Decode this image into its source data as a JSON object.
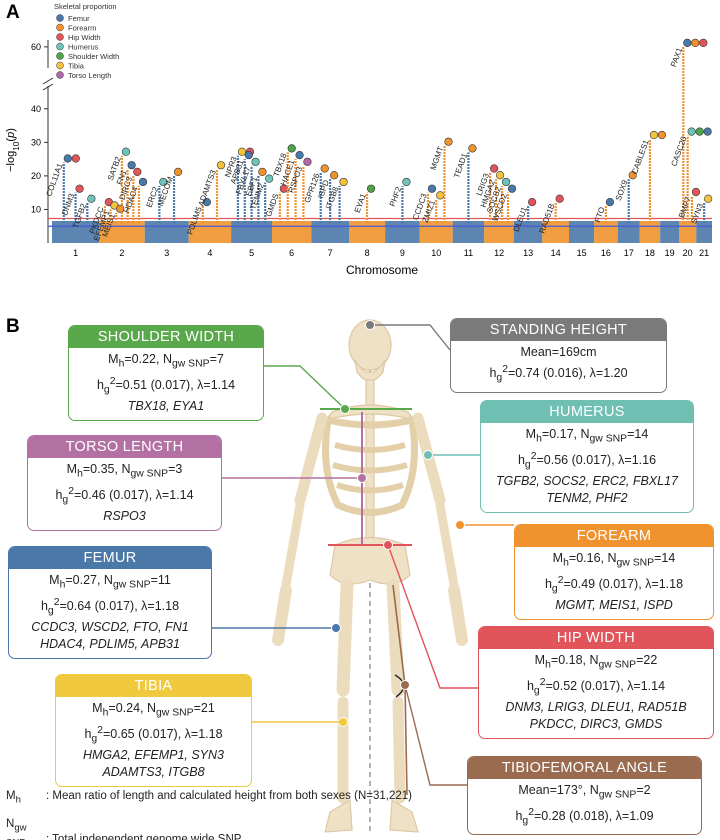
{
  "panel_a": {
    "label": "A",
    "chart_data": {
      "type": "manhattan",
      "ylabel": [
        "−log",
        {
          "sub": "10"
        },
        "(",
        {
          "i": "p"
        },
        ")"
      ],
      "xlabel": "Chromosome",
      "legend_title": "Skeletal proportion",
      "series": [
        {
          "name": "Femur",
          "color": "#4a78a8"
        },
        {
          "name": "Forearm",
          "color": "#f0922e"
        },
        {
          "name": "Hip Width",
          "color": "#e0545a"
        },
        {
          "name": "Humerus",
          "color": "#6fc4b8"
        },
        {
          "name": "Shoulder Width",
          "color": "#4fa34a"
        },
        {
          "name": "Tibia",
          "color": "#f2c43d"
        },
        {
          "name": "Torso Length",
          "color": "#b267a8"
        }
      ],
      "categories": [
        "1",
        "2",
        "3",
        "4",
        "5",
        "6",
        "7",
        "8",
        "9",
        "10",
        "11",
        "12",
        "13",
        "14",
        "15",
        "16",
        "17",
        "18",
        "19",
        "20",
        "21"
      ],
      "band_colors": [
        "#4a78a8",
        "#f0922e"
      ],
      "ylim": [
        0,
        62
      ],
      "y_break": [
        45,
        55
      ],
      "yticks": [
        10,
        20,
        30,
        40,
        60
      ],
      "hlines": [
        {
          "value": 7.3,
          "color": "#e0545a"
        },
        {
          "value": 5,
          "color": "#4a5ad8"
        }
      ],
      "peaks": [
        {
          "label": "COL11A1",
          "chr": "1",
          "value": 24,
          "colors": [
            "#4a78a8",
            "#e0545a"
          ]
        },
        {
          "label": "DNM3",
          "chr": "1",
          "value": 15,
          "colors": [
            "#e0545a"
          ]
        },
        {
          "label": "TGFB2",
          "chr": "1",
          "value": 12,
          "colors": [
            "#6fc4b8"
          ]
        },
        {
          "label": "PKDCC",
          "chr": "2",
          "value": 11,
          "colors": [
            "#e0545a"
          ]
        },
        {
          "label": "EFEMP1",
          "chr": "2",
          "value": 10,
          "colors": [
            "#f2c43d"
          ]
        },
        {
          "label": "MEIS1",
          "chr": "2",
          "value": 9,
          "colors": [
            "#f0922e"
          ]
        },
        {
          "label": "SATB2",
          "chr": "2",
          "value": 26,
          "colors": [
            "#6fc4b8"
          ]
        },
        {
          "label": "FN1",
          "chr": "2",
          "value": 22,
          "colors": [
            "#4a78a8"
          ]
        },
        {
          "label": "DIRC3",
          "chr": "2",
          "value": 20,
          "colors": [
            "#e0545a"
          ]
        },
        {
          "label": "HDAC4",
          "chr": "2",
          "value": 17,
          "colors": [
            "#4a78a8"
          ]
        },
        {
          "label": "ERC2",
          "chr": "3",
          "value": 17,
          "colors": [
            "#6fc4b8"
          ]
        },
        {
          "label": "MECOM",
          "chr": "3",
          "value": 20,
          "colors": [
            "#f0922e"
          ]
        },
        {
          "label": "PDLIM5",
          "chr": "4",
          "value": 11,
          "colors": [
            "#4a78a8"
          ]
        },
        {
          "label": "ADAMTS3",
          "chr": "4",
          "value": 22,
          "colors": [
            "#f2c43d"
          ]
        },
        {
          "label": "NPR3",
          "chr": "5",
          "value": 26,
          "colors": [
            "#f2c43d",
            "#e0545a"
          ]
        },
        {
          "label": "APB31",
          "chr": "5",
          "value": 25,
          "colors": [
            "#4a78a8"
          ]
        },
        {
          "label": "FBXL17",
          "chr": "5",
          "value": 23,
          "colors": [
            "#6fc4b8"
          ]
        },
        {
          "label": "EBF1",
          "chr": "5",
          "value": 20,
          "colors": [
            "#f0922e"
          ]
        },
        {
          "label": "TENM2",
          "chr": "5",
          "value": 18,
          "colors": [
            "#6fc4b8"
          ]
        },
        {
          "label": "GMDS",
          "chr": "6",
          "value": 15,
          "colors": [
            "#e0545a"
          ]
        },
        {
          "label": "TBX18",
          "chr": "6",
          "value": 27,
          "colors": [
            "#4fa34a"
          ]
        },
        {
          "label": "HACE1",
          "chr": "6",
          "value": 25,
          "colors": [
            "#4a78a8"
          ]
        },
        {
          "label": "RSPO3",
          "chr": "6",
          "value": 23,
          "colors": [
            "#b267a8"
          ]
        },
        {
          "label": "GPR126",
          "chr": "7",
          "value": 21,
          "colors": [
            "#f0922e"
          ]
        },
        {
          "label": "ISPD",
          "chr": "7",
          "value": 19,
          "colors": [
            "#f0922e"
          ]
        },
        {
          "label": "ITGB8",
          "chr": "7",
          "value": 17,
          "colors": [
            "#f2c43d"
          ]
        },
        {
          "label": "EYA1",
          "chr": "8",
          "value": 15,
          "colors": [
            "#4fa34a"
          ]
        },
        {
          "label": "PHF2",
          "chr": "9",
          "value": 17,
          "colors": [
            "#6fc4b8"
          ]
        },
        {
          "label": "CCDC3",
          "chr": "10",
          "value": 15,
          "colors": [
            "#4a78a8"
          ]
        },
        {
          "label": "ZMIZ1",
          "chr": "10",
          "value": 13,
          "colors": [
            "#f2c43d"
          ]
        },
        {
          "label": "MGMT",
          "chr": "10",
          "value": 29,
          "colors": [
            "#f0922e"
          ]
        },
        {
          "label": "TEAD1",
          "chr": "11",
          "value": 27,
          "colors": [
            "#f0922e"
          ]
        },
        {
          "label": "LRIG3",
          "chr": "12",
          "value": 21,
          "colors": [
            "#e0545a"
          ]
        },
        {
          "label": "HMGA2",
          "chr": "12",
          "value": 19,
          "colors": [
            "#f2c43d"
          ]
        },
        {
          "label": "SOCS2",
          "chr": "12",
          "value": 17,
          "colors": [
            "#6fc4b8"
          ]
        },
        {
          "label": "WSCD2",
          "chr": "12",
          "value": 15,
          "colors": [
            "#4a78a8"
          ]
        },
        {
          "label": "DLEU1",
          "chr": "13",
          "value": 11,
          "colors": [
            "#e0545a"
          ]
        },
        {
          "label": "RAD51B",
          "chr": "14",
          "value": 12,
          "colors": [
            "#e0545a"
          ]
        },
        {
          "label": "FTO",
          "chr": "16",
          "value": 11,
          "colors": [
            "#4a78a8"
          ]
        },
        {
          "label": "SOX9",
          "chr": "17",
          "value": 19,
          "colors": [
            "#f0922e"
          ]
        },
        {
          "label": "CABLES1",
          "chr": "18",
          "value": 31,
          "colors": [
            "#f2c43d",
            "#f0922e"
          ]
        },
        {
          "label": "PAX1",
          "chr": "20",
          "value": 60,
          "colors": [
            "#4a78a8",
            "#f0922e",
            "#e0545a"
          ]
        },
        {
          "label": "CASC20",
          "chr": "20",
          "value": 32,
          "colors": [
            "#6fc4b8",
            "#4fa34a",
            "#4a78a8"
          ]
        },
        {
          "label": "BMP7",
          "chr": "20",
          "value": 14,
          "colors": [
            "#e0545a"
          ]
        },
        {
          "label": "SYN3",
          "chr": "21",
          "value": 12,
          "colors": [
            "#f2c43d"
          ]
        }
      ]
    }
  },
  "panel_b": {
    "label": "B",
    "cards": [
      {
        "title": "SHOULDER WIDTH",
        "color": "#5aa84c",
        "lines": [
          [
            "M",
            {
              "sub": "h"
            },
            "=0.22, N",
            {
              "sub": "gw SNP"
            },
            "=7"
          ],
          [
            "h",
            {
              "sub": "g"
            },
            {
              "sup": "2"
            },
            "=0.51 (0.017), λ=1.14"
          ]
        ],
        "genes": [
          "TBX18, EYA1"
        ]
      },
      {
        "title": "STANDING HEIGHT",
        "color": "#7a7a7a",
        "lines": [
          [
            "Mean=169cm"
          ],
          [
            "h",
            {
              "sub": "g"
            },
            {
              "sup": "2"
            },
            "=0.74 (0.016), λ=1.20"
          ]
        ],
        "genes": []
      },
      {
        "title": "TORSO LENGTH",
        "color": "#b371a3",
        "lines": [
          [
            "M",
            {
              "sub": "h"
            },
            "=0.35, N",
            {
              "sub": "gw SNP"
            },
            "=3"
          ],
          [
            "h",
            {
              "sub": "g"
            },
            {
              "sup": "2"
            },
            "=0.46 (0.017), λ=1.14"
          ]
        ],
        "genes": [
          "RSPO3"
        ]
      },
      {
        "title": "HUMERUS",
        "color": "#6fbfb3",
        "lines": [
          [
            "M",
            {
              "sub": "h"
            },
            "=0.17, N",
            {
              "sub": "gw SNP"
            },
            "=14"
          ],
          [
            "h",
            {
              "sub": "g"
            },
            {
              "sup": "2"
            },
            "=0.56 (0.017), λ=1.16"
          ]
        ],
        "genes": [
          "TGFB2, SOCS2, ERC2, FBXL17",
          "TENM2, PHF2"
        ]
      },
      {
        "title": "FEMUR",
        "color": "#4a78a8",
        "lines": [
          [
            "M",
            {
              "sub": "h"
            },
            "=0.27, N",
            {
              "sub": "gw SNP"
            },
            "=11"
          ],
          [
            "h",
            {
              "sub": "g"
            },
            {
              "sup": "2"
            },
            "=0.64 (0.017), λ=1.18"
          ]
        ],
        "genes": [
          "CCDC3, WSCD2, FTO, FN1",
          "HDAC4, PDLIM5, APB31"
        ]
      },
      {
        "title": "FOREARM",
        "color": "#f0922e",
        "lines": [
          [
            "M",
            {
              "sub": "h"
            },
            "=0.16, N",
            {
              "sub": "gw SNP"
            },
            "=14"
          ],
          [
            "h",
            {
              "sub": "g"
            },
            {
              "sup": "2"
            },
            "=0.49 (0.017), λ=1.18"
          ]
        ],
        "genes": [
          "MGMT, MEIS1, ISPD"
        ]
      },
      {
        "title": "HIP WIDTH",
        "color": "#e0545a",
        "lines": [
          [
            "M",
            {
              "sub": "h"
            },
            "=0.18, N",
            {
              "sub": "gw SNP"
            },
            "=22"
          ],
          [
            "h",
            {
              "sub": "g"
            },
            {
              "sup": "2"
            },
            "=0.52 (0.017), λ=1.14"
          ]
        ],
        "genes": [
          "DNM3, LRIG3, DLEU1, RAD51B",
          "PKDCC, DIRC3, GMDS"
        ]
      },
      {
        "title": "TIBIA",
        "color": "#f0c93f",
        "lines": [
          [
            "M",
            {
              "sub": "h"
            },
            "=0.24, N",
            {
              "sub": "gw SNP"
            },
            "=21"
          ],
          [
            "h",
            {
              "sub": "g"
            },
            {
              "sup": "2"
            },
            "=0.65 (0.017), λ=1.18"
          ]
        ],
        "genes": [
          "HMGA2, EFEMP1, SYN3",
          "ADAMTS3, ITGB8"
        ]
      },
      {
        "title": "TIBIOFEMORAL ANGLE",
        "color": "#9a6b4e",
        "lines": [
          [
            "Mean=173°, N",
            {
              "sub": "gw SNP"
            },
            "=2"
          ],
          [
            "h",
            {
              "sub": "g"
            },
            {
              "sup": "2"
            },
            "=0.28 (0.018), λ=1.09"
          ]
        ],
        "genes": []
      }
    ],
    "footnotes": [
      {
        "symbol": [
          "M",
          {
            "sub": "h"
          }
        ],
        "text": ": Mean ratio of length and calculated height from both sexes (N=31,221)"
      },
      {
        "symbol": [
          "N",
          {
            "sub": "gw SNP"
          }
        ],
        "text": ": Total independent genome wide SNP"
      }
    ]
  }
}
